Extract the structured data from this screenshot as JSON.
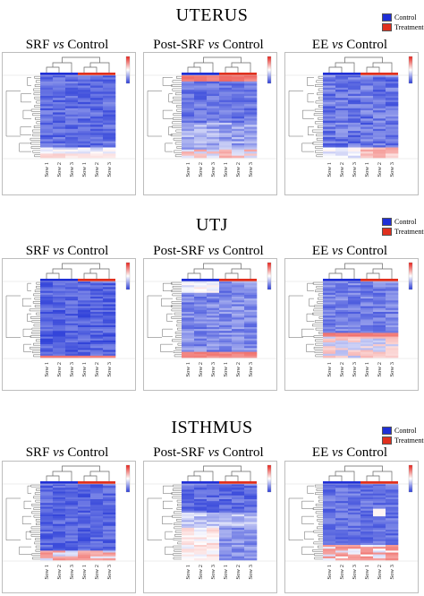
{
  "figure": {
    "legend": {
      "control_label": "Control",
      "treatment_label": "Treatment"
    },
    "colors": {
      "control": "#1f2fd6",
      "treatment": "#e0301e",
      "low": "#2b3dd8",
      "mid": "#ffffff",
      "high": "#e8231c"
    }
  },
  "sections": [
    {
      "title": "UTERUS",
      "panels": [
        {
          "lead": "SRF",
          "vs": "vs",
          "ref": "Control",
          "colorbar_top": "",
          "colorbar_bottom": ""
        },
        {
          "lead": "Post-SRF",
          "vs": "vs",
          "ref": "Control",
          "colorbar_top": "",
          "colorbar_bottom": ""
        },
        {
          "lead": "EE",
          "vs": "vs",
          "ref": "Control",
          "colorbar_top": "",
          "colorbar_bottom": ""
        }
      ]
    },
    {
      "title": "UTJ",
      "panels": [
        {
          "lead": "SRF",
          "vs": "vs",
          "ref": "Control",
          "colorbar_top": "",
          "colorbar_bottom": ""
        },
        {
          "lead": "Post-SRF",
          "vs": "vs",
          "ref": "Control",
          "colorbar_top": "",
          "colorbar_bottom": ""
        },
        {
          "lead": "EE",
          "vs": "vs",
          "ref": "Control",
          "colorbar_top": "",
          "colorbar_bottom": ""
        }
      ]
    },
    {
      "title": "ISTHMUS",
      "panels": [
        {
          "lead": "SRF",
          "vs": "vs",
          "ref": "Control",
          "colorbar_top": "",
          "colorbar_bottom": ""
        },
        {
          "lead": "Post-SRF",
          "vs": "vs",
          "ref": "Control",
          "colorbar_top": "",
          "colorbar_bottom": ""
        },
        {
          "lead": "EE",
          "vs": "vs",
          "ref": "Control",
          "colorbar_top": "",
          "colorbar_bottom": ""
        }
      ]
    }
  ],
  "chart_data": {
    "type": "heatmap",
    "columns": [
      "Sow 1",
      "Sow 2",
      "Sow 3",
      "Sow 1",
      "Sow 2",
      "Sow 3"
    ],
    "column_groups": [
      "Control",
      "Control",
      "Control",
      "Treatment",
      "Treatment",
      "Treatment"
    ],
    "legend_placement": "top-right of each row",
    "panels": [
      {
        "tissue": "UTERUS",
        "comparison": "SRF vs Control"
      },
      {
        "tissue": "UTERUS",
        "comparison": "Post-SRF vs Control"
      },
      {
        "tissue": "UTERUS",
        "comparison": "EE vs Control"
      },
      {
        "tissue": "UTJ",
        "comparison": "SRF vs Control"
      },
      {
        "tissue": "UTJ",
        "comparison": "Post-SRF vs Control"
      },
      {
        "tissue": "UTJ",
        "comparison": "EE vs Control"
      },
      {
        "tissue": "ISTHMUS",
        "comparison": "SRF vs Control"
      },
      {
        "tissue": "ISTHMUS",
        "comparison": "Post-SRF vs Control"
      },
      {
        "tissue": "ISTHMUS",
        "comparison": "EE vs Control"
      }
    ]
  }
}
